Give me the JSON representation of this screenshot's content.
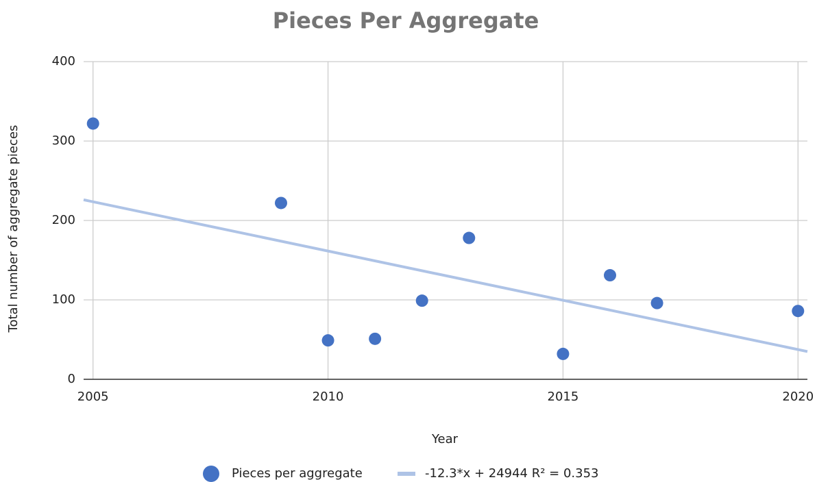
{
  "chart_data": {
    "type": "scatter",
    "title": "Pieces Per Aggregate",
    "x_label": "Year",
    "y_label": "Total number of aggregate pieces",
    "series": [
      {
        "name": "Pieces per aggregate",
        "color": "#4472c4",
        "x": [
          2005,
          2009,
          2010,
          2011,
          2012,
          2013,
          2015,
          2016,
          2017,
          2020
        ],
        "values": [
          322,
          222,
          49,
          51,
          99,
          178,
          32,
          131,
          96,
          86
        ]
      }
    ],
    "trendline": {
      "name": "-12.3*x + 24944 R² = 0.353",
      "color": "#aec3e6",
      "x": [
        2004.8,
        2020.2
      ],
      "values": [
        226,
        35
      ]
    },
    "xlim": [
      2004.8,
      2020.2
    ],
    "xticks": [
      2005,
      2010,
      2015,
      2020
    ],
    "ylim": [
      0,
      400
    ],
    "yticks": [
      0,
      100,
      200,
      300,
      400
    ],
    "grid": true,
    "legend": "bottom"
  }
}
